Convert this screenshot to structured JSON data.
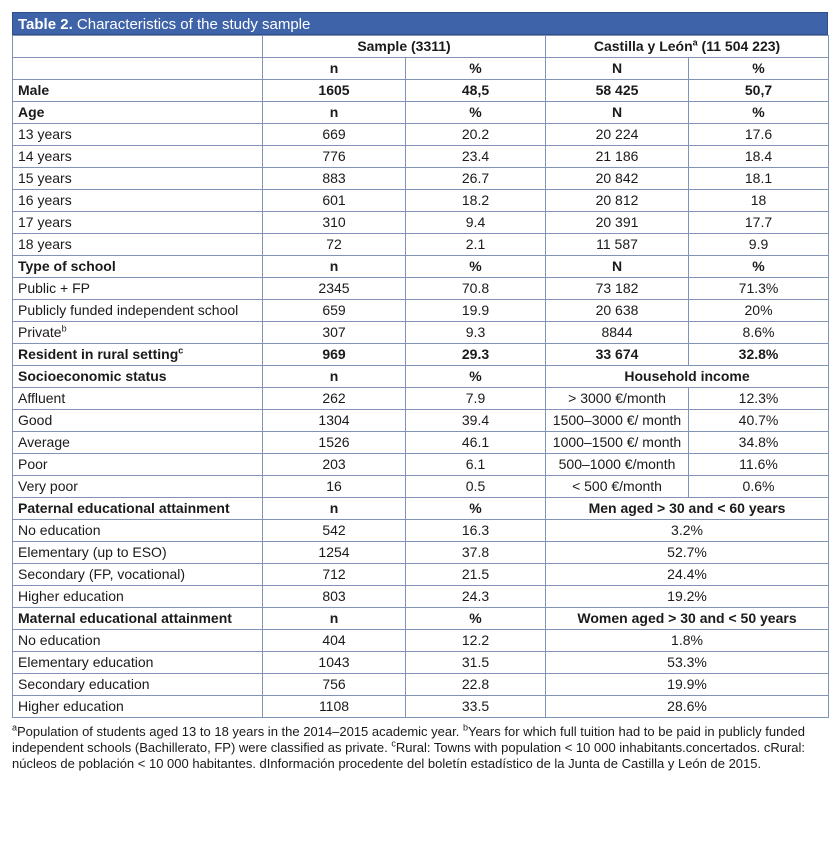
{
  "title": {
    "label": "Table 2.",
    "text": " Characteristics of the study sample"
  },
  "table": {
    "rows": [
      {
        "cells": [
          "",
          "Sample (3311)",
          {
            "text": "Castilla y León",
            "sup": "a",
            "after": " (11 504 223)"
          }
        ]
      },
      {
        "cells": [
          "",
          "n",
          "%",
          "N",
          "%"
        ]
      },
      {
        "bold": true,
        "cells": [
          "Male",
          "1605",
          "48,5",
          "58 425",
          "50,7"
        ]
      },
      {
        "bold": true,
        "cells": [
          "Age",
          "n",
          "%",
          "N",
          "%"
        ]
      },
      {
        "cells": [
          "13 years",
          "669",
          "20.2",
          "20 224",
          "17.6"
        ]
      },
      {
        "cells": [
          "14 years",
          "776",
          "23.4",
          "21 186",
          "18.4"
        ]
      },
      {
        "cells": [
          "15 years",
          "883",
          "26.7",
          "20 842",
          "18.1"
        ]
      },
      {
        "cells": [
          "16 years",
          "601",
          "18.2",
          "20 812",
          "18"
        ]
      },
      {
        "cells": [
          "17 years",
          "310",
          "9.4",
          "20 391",
          "17.7"
        ]
      },
      {
        "cells": [
          "18 years",
          "72",
          "2.1",
          "11 587",
          "9.9"
        ]
      },
      {
        "bold": true,
        "cells": [
          "Type of school",
          "n",
          "%",
          "N",
          "%"
        ]
      },
      {
        "cells": [
          "Public + FP",
          "2345",
          "70.8",
          "73 182",
          "71.3%"
        ]
      },
      {
        "cells": [
          "Publicly funded independent school",
          "659",
          "19.9",
          "20 638",
          "20%"
        ]
      },
      {
        "cells": [
          {
            "text": "Private",
            "sup": "b"
          },
          "307",
          "9.3",
          "8844",
          "8.6%"
        ]
      },
      {
        "bold": true,
        "cells": [
          {
            "text": "Resident in rural setting",
            "sup": "c"
          },
          "969",
          "29.3",
          "33 674",
          "32.8%"
        ]
      },
      {
        "bold": true,
        "cells": [
          "Socioeconomic status",
          "n",
          "%",
          "Household income"
        ]
      },
      {
        "cells": [
          "Affluent",
          "262",
          "7.9",
          "> 3000 €/month",
          "12.3%"
        ]
      },
      {
        "cells": [
          "Good",
          "1304",
          "39.4",
          "1500–3000 €/ month",
          "40.7%"
        ]
      },
      {
        "cells": [
          "Average",
          "1526",
          "46.1",
          "1000–1500 €/ month",
          "34.8%"
        ]
      },
      {
        "cells": [
          "Poor",
          "203",
          "6.1",
          "500–1000 €/month",
          "11.6%"
        ]
      },
      {
        "cells": [
          "Very poor",
          "16",
          "0.5",
          "< 500 €/month",
          "0.6%"
        ]
      },
      {
        "bold": true,
        "cells": [
          "Paternal educational attainment",
          "n",
          "%",
          "Men aged > 30 and < 60 years"
        ]
      },
      {
        "cells": [
          "No education",
          "542",
          "16.3",
          "3.2%"
        ]
      },
      {
        "cells": [
          "Elementary (up to ESO)",
          "1254",
          "37.8",
          "52.7%"
        ]
      },
      {
        "cells": [
          "Secondary (FP, vocational)",
          "712",
          "21.5",
          "24.4%"
        ]
      },
      {
        "cells": [
          "Higher education",
          "803",
          "24.3",
          "19.2%"
        ]
      },
      {
        "bold": true,
        "cells": [
          "Maternal educational attainment",
          "n",
          "%",
          "Women aged > 30 and < 50 years"
        ]
      },
      {
        "cells": [
          "No education",
          "404",
          "12.2",
          "1.8%"
        ]
      },
      {
        "cells": [
          "Elementary education",
          "1043",
          "31.5",
          "53.3%"
        ]
      },
      {
        "cells": [
          "Secondary education",
          "756",
          "22.8",
          "19.9%"
        ]
      },
      {
        "cells": [
          "Higher education",
          "1108",
          "33.5",
          "28.6%"
        ]
      }
    ]
  },
  "footnote": [
    {
      "sup": "a"
    },
    {
      "text": "Population of students aged 13 to 18 years in the 2014–2015 academic year. "
    },
    {
      "sup": "b"
    },
    {
      "text": "Years for which full tuition had to be paid in publicly funded independent schools (Bachillerato, FP) were classified as private. "
    },
    {
      "sup": "c"
    },
    {
      "text": "Rural: Towns with population < 10 000 inhabitants.concertados. cRural: núcleos de población < 10 000 habitantes. dInformación procedente del boletín estadístico de la Junta de Castilla y León de 2015."
    }
  ]
}
